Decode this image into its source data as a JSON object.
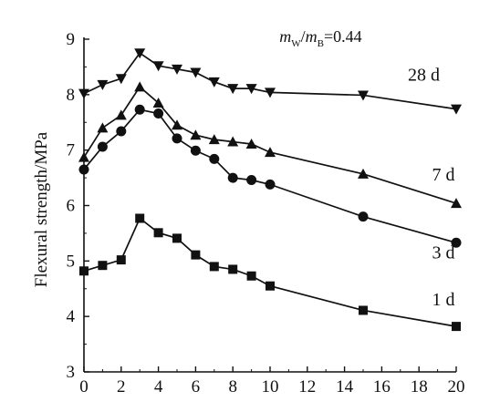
{
  "chart_data": {
    "type": "line",
    "ylabel": "Flexural strength/MPa",
    "xlabel": "",
    "annotation": {
      "m": "m",
      "w": "W",
      "slash": "/",
      "b": "B",
      "eq": "=0.44"
    },
    "xlim": [
      0,
      20
    ],
    "ylim": [
      3,
      9
    ],
    "x_ticks": [
      0,
      2,
      4,
      6,
      8,
      10,
      12,
      14,
      16,
      18,
      20
    ],
    "y_ticks": [
      3,
      4,
      5,
      6,
      7,
      8,
      9
    ],
    "series": [
      {
        "name": "28 d",
        "marker": "triangle-down",
        "points": [
          [
            0,
            8.02
          ],
          [
            1,
            8.18
          ],
          [
            2,
            8.29
          ],
          [
            3,
            8.75
          ],
          [
            4,
            8.52
          ],
          [
            5,
            8.46
          ],
          [
            6,
            8.4
          ],
          [
            7,
            8.23
          ],
          [
            8,
            8.11
          ],
          [
            9,
            8.11
          ],
          [
            10,
            8.04
          ],
          [
            15,
            7.99
          ],
          [
            20,
            7.74
          ]
        ]
      },
      {
        "name": "7 d",
        "marker": "triangle-up",
        "points": [
          [
            0,
            6.87
          ],
          [
            1,
            7.4
          ],
          [
            2,
            7.63
          ],
          [
            3,
            8.14
          ],
          [
            4,
            7.85
          ],
          [
            5,
            7.45
          ],
          [
            6,
            7.27
          ],
          [
            7,
            7.19
          ],
          [
            8,
            7.15
          ],
          [
            9,
            7.11
          ],
          [
            10,
            6.96
          ],
          [
            15,
            6.57
          ],
          [
            20,
            6.04
          ]
        ]
      },
      {
        "name": "3 d",
        "marker": "circle",
        "points": [
          [
            0,
            6.65
          ],
          [
            1,
            7.06
          ],
          [
            2,
            7.34
          ],
          [
            3,
            7.73
          ],
          [
            4,
            7.66
          ],
          [
            5,
            7.21
          ],
          [
            6,
            6.99
          ],
          [
            7,
            6.84
          ],
          [
            8,
            6.5
          ],
          [
            9,
            6.46
          ],
          [
            10,
            6.38
          ],
          [
            15,
            5.8
          ],
          [
            20,
            5.33
          ]
        ]
      },
      {
        "name": "1 d",
        "marker": "square",
        "points": [
          [
            0,
            4.82
          ],
          [
            1,
            4.92
          ],
          [
            2,
            5.02
          ],
          [
            3,
            5.77
          ],
          [
            4,
            5.51
          ],
          [
            5,
            5.41
          ],
          [
            6,
            5.11
          ],
          [
            7,
            4.9
          ],
          [
            8,
            4.85
          ],
          [
            9,
            4.73
          ],
          [
            10,
            4.55
          ],
          [
            15,
            4.11
          ],
          [
            20,
            3.82
          ]
        ]
      }
    ],
    "series_label_positions": {
      "28 d": [
        17.4,
        8.25
      ],
      "7 d": [
        18.7,
        6.45
      ],
      "3 d": [
        18.7,
        5.05
      ],
      "1 d": [
        18.7,
        4.2
      ]
    },
    "annotation_position": [
      10.5,
      8.95
    ]
  }
}
